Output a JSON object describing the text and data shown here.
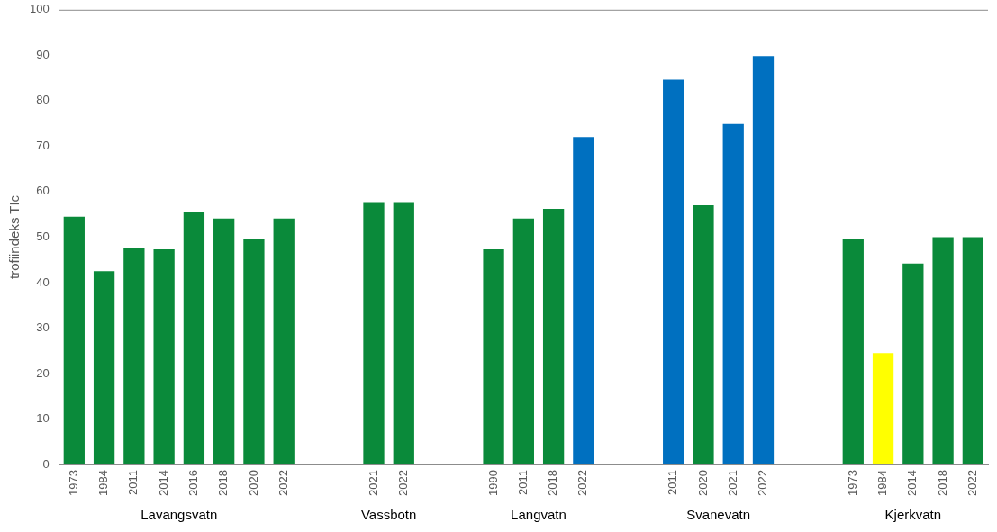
{
  "chart_data": {
    "type": "bar",
    "ylabel": "trofiindeks TIc",
    "categories": [
      "1973",
      "1984",
      "2011",
      "2014",
      "2016",
      "2018",
      "2020",
      "2022",
      null,
      null,
      "2021",
      "2022",
      null,
      null,
      "1990",
      "2011",
      "2018",
      "2022",
      null,
      null,
      "2011",
      "2020",
      "2021",
      "2022",
      null,
      null,
      "1973",
      "1984",
      "2014",
      "2018",
      "2022"
    ],
    "values": [
      54.5,
      42.5,
      47.5,
      47.3,
      55.6,
      54.1,
      49.6,
      54.1,
      null,
      null,
      57.7,
      57.7,
      null,
      null,
      47.3,
      54.1,
      56.2,
      72,
      null,
      null,
      84.6,
      57,
      74.9,
      89.8,
      null,
      null,
      49.6,
      24.5,
      44.2,
      50,
      50
    ],
    "colors": [
      "#0a8a3a",
      "#0a8a3a",
      "#0a8a3a",
      "#0a8a3a",
      "#0a8a3a",
      "#0a8a3a",
      "#0a8a3a",
      "#0a8a3a",
      null,
      null,
      "#0a8a3a",
      "#0a8a3a",
      null,
      null,
      "#0a8a3a",
      "#0a8a3a",
      "#0a8a3a",
      "#0070c0",
      null,
      null,
      "#0070c0",
      "#0a8a3a",
      "#0070c0",
      "#0070c0",
      null,
      null,
      "#0a8a3a",
      "#ffff00",
      "#0a8a3a",
      "#0a8a3a",
      "#0a8a3a"
    ],
    "ylim": [
      0,
      100
    ],
    "yticks": [
      0,
      10,
      20,
      30,
      40,
      50,
      60,
      70,
      80,
      90,
      100
    ],
    "annotations": [
      "Lavangsvatn",
      "Vassbotn",
      "Langvatn",
      "Svanevatn",
      "Kjerkvatn"
    ]
  }
}
